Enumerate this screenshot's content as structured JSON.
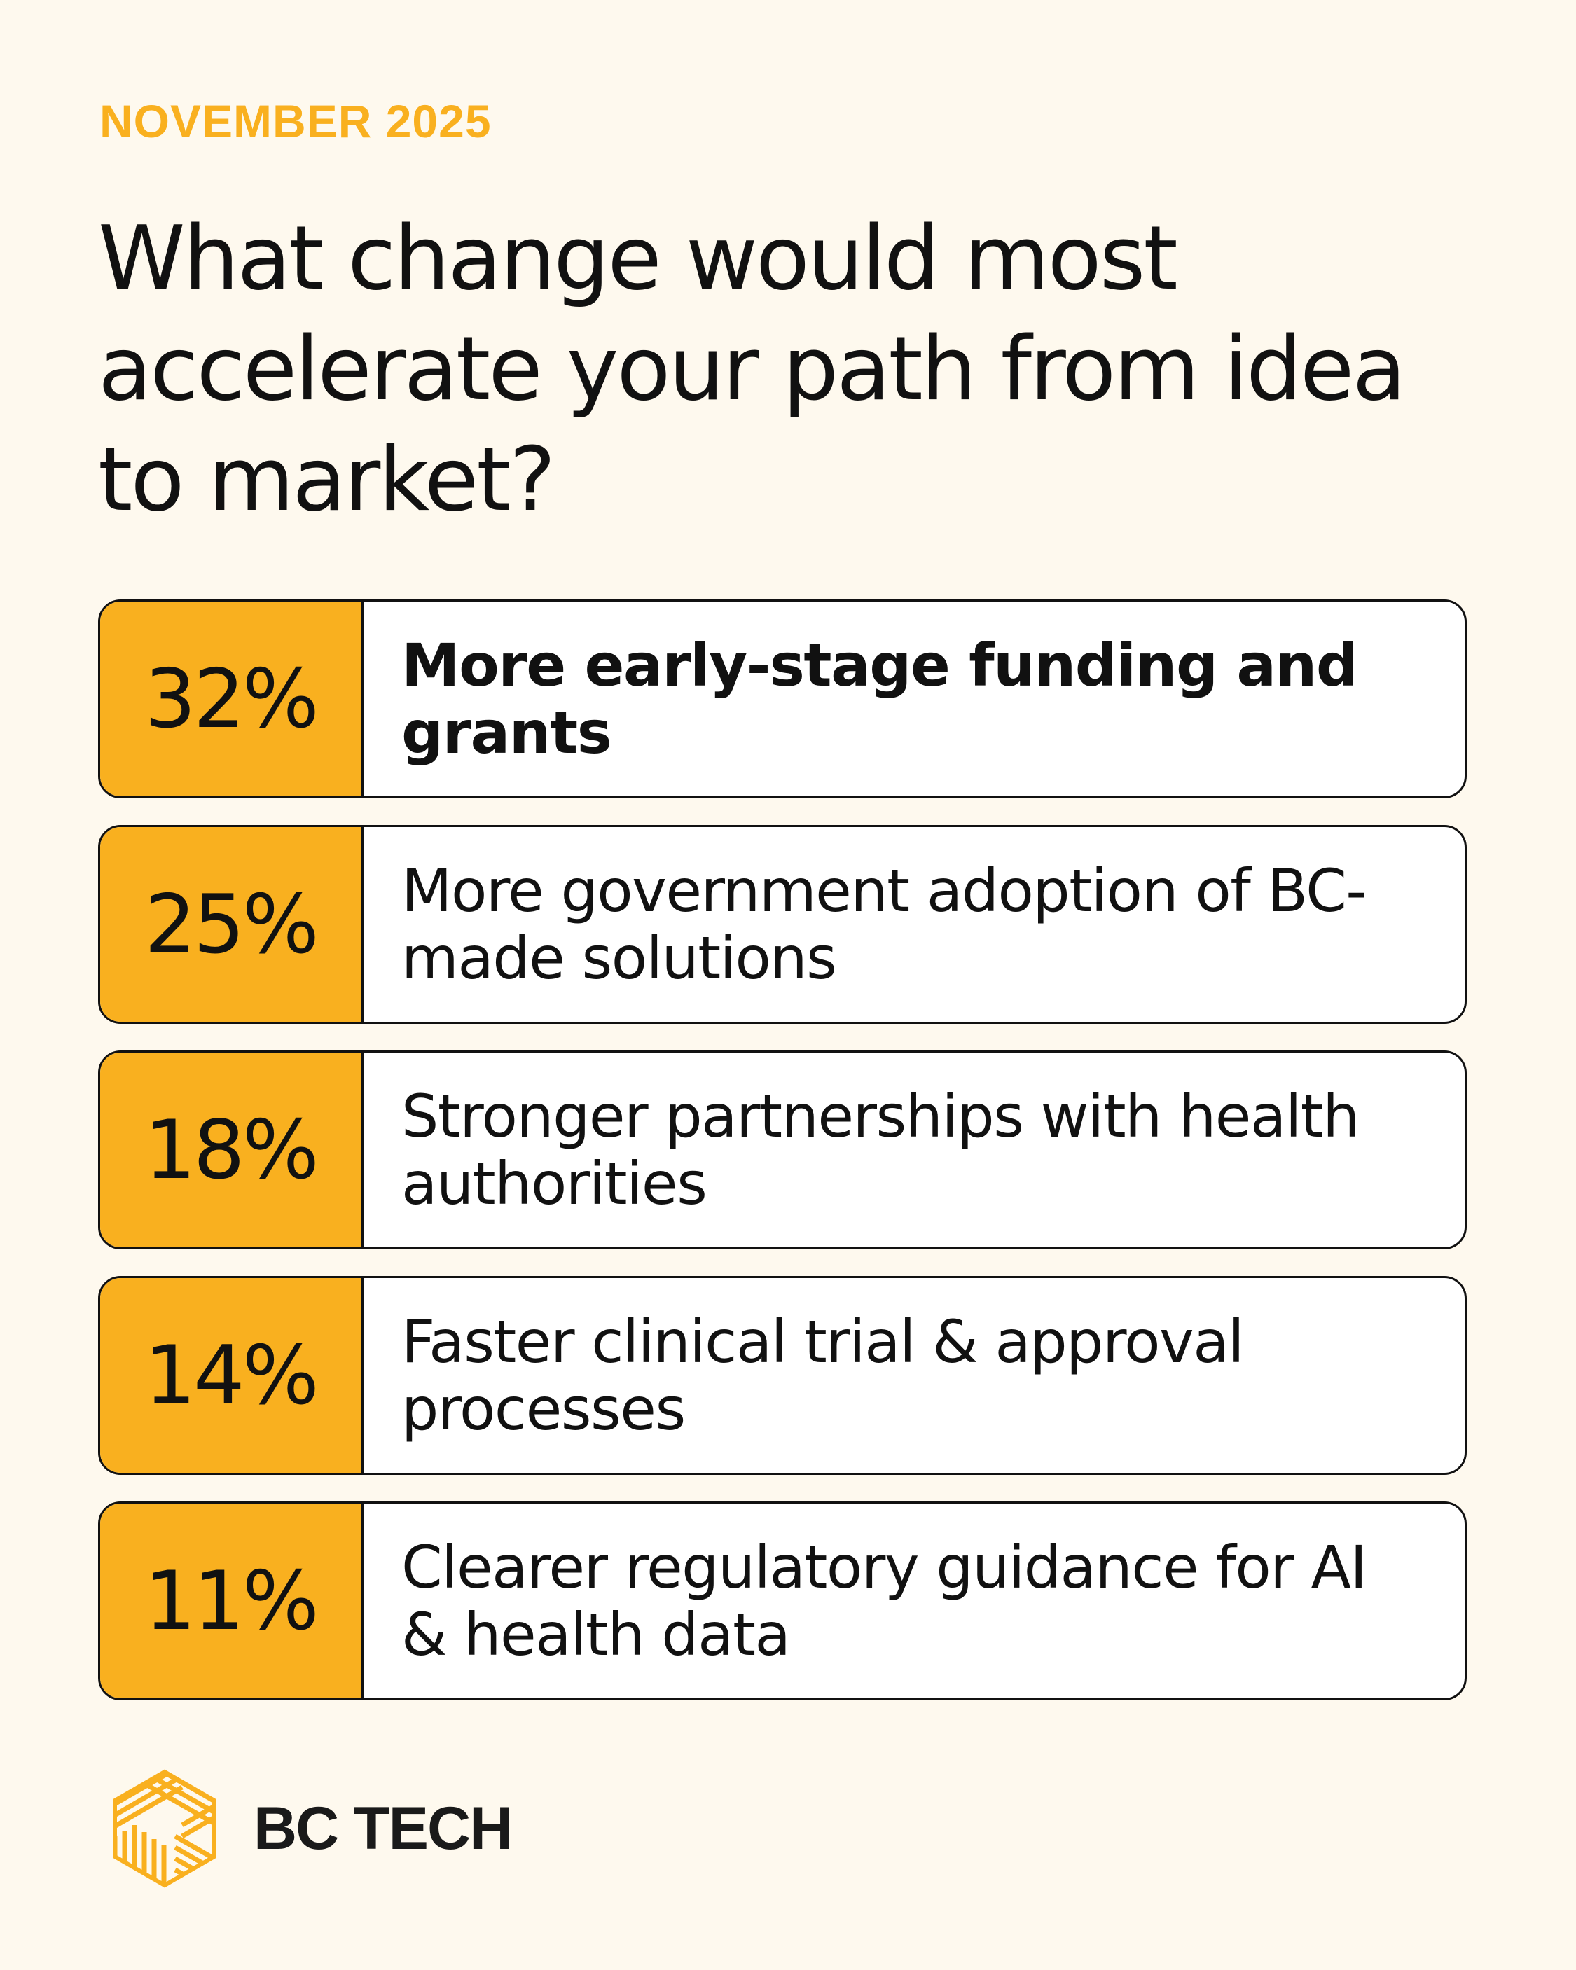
{
  "eyebrow": "NOVEMBER 2025",
  "title": "What change would most accelerate your path from idea to market?",
  "colors": {
    "background": "#FEF9EE",
    "accent": "#F9B01F",
    "text": "#111111"
  },
  "chart_data": {
    "type": "table",
    "rows": [
      {
        "value": 32,
        "value_label": "32%",
        "label": "More early-stage funding and grants",
        "emphasized": true
      },
      {
        "value": 25,
        "value_label": "25%",
        "label": "More government adoption of BC-made solutions",
        "emphasized": false
      },
      {
        "value": 18,
        "value_label": "18%",
        "label": "Stronger partnerships with health authorities",
        "emphasized": false
      },
      {
        "value": 14,
        "value_label": "14%",
        "label": "Faster clinical trial & approval processes",
        "emphasized": false
      },
      {
        "value": 11,
        "value_label": "11%",
        "label": "Clearer regulatory guidance for AI & health data",
        "emphasized": false
      }
    ]
  },
  "brand": {
    "name": "BC TECH",
    "icon": "bc-tech-hexagon-logo-icon"
  }
}
